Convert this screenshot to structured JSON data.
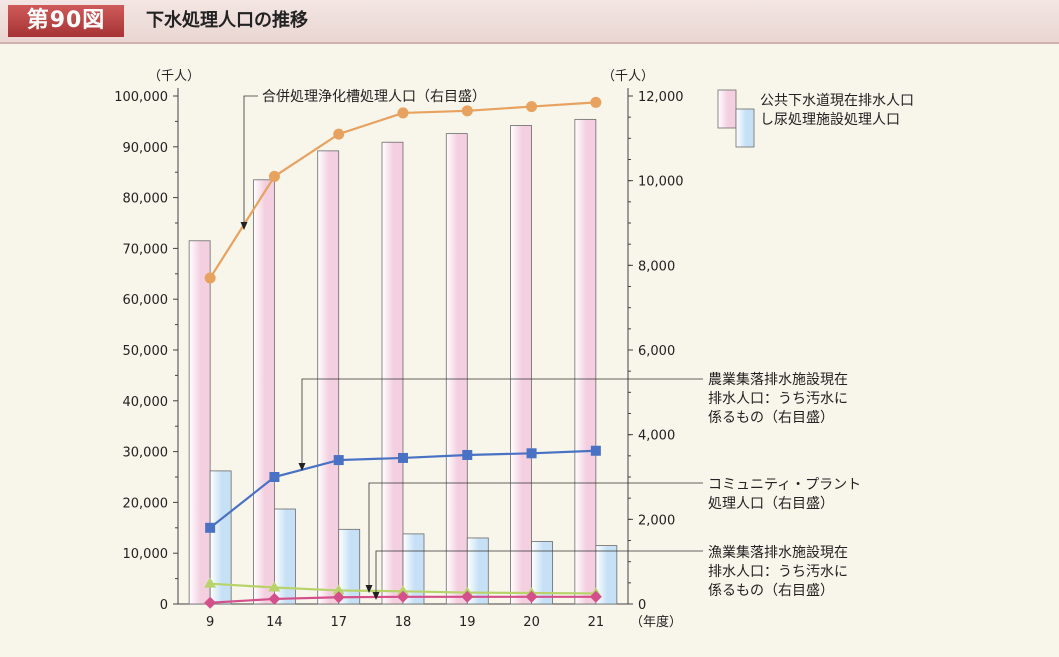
{
  "header": {
    "figure_number": "第90図",
    "title": "下水処理人口の推移"
  },
  "chart_data": {
    "type": "bar",
    "categories": [
      "9",
      "14",
      "17",
      "18",
      "19",
      "20",
      "21"
    ],
    "xlabel": "（年度）",
    "ylabel_left": "（千人）",
    "ylabel_right": "（千人）",
    "ylim_left": [
      0,
      100000
    ],
    "ylim_right": [
      0,
      12000
    ],
    "left_ticks": [
      "0",
      "10,000",
      "20,000",
      "30,000",
      "40,000",
      "50,000",
      "60,000",
      "70,000",
      "80,000",
      "90,000",
      "100,000"
    ],
    "right_ticks": [
      "0",
      "2,000",
      "4,000",
      "6,000",
      "8,000",
      "10,000",
      "12,000"
    ],
    "legend_position": "top-right",
    "bar_series": [
      {
        "name": "公共下水道現在排水人口",
        "axis": "left",
        "color": "#f3cfe0",
        "values": [
          71500,
          83500,
          89200,
          90900,
          92600,
          94200,
          95400
        ]
      },
      {
        "name": "し尿処理施設処理人口",
        "axis": "left",
        "color": "#c6e1f6",
        "values": [
          26200,
          18700,
          14700,
          13800,
          13000,
          12300,
          11500
        ]
      }
    ],
    "line_series": [
      {
        "name": "合併処理浄化槽処理人口（右目盛）",
        "axis": "right",
        "color": "#e8a25f",
        "marker": "circle",
        "values": [
          7700,
          10100,
          11100,
          11600,
          11650,
          11750,
          11850
        ]
      },
      {
        "name": "農業集落排水施設現在排水人口：うち汚水に係るもの（右目盛）",
        "axis": "right",
        "color": "#4a72c4",
        "marker": "square",
        "values": [
          1800,
          3000,
          3400,
          3450,
          3520,
          3560,
          3620
        ]
      },
      {
        "name": "コミュニティ・プラント処理人口（右目盛）",
        "axis": "right",
        "color": "#b7d36a",
        "marker": "triangle",
        "values": [
          480,
          390,
          320,
          300,
          270,
          260,
          250
        ]
      },
      {
        "name": "漁業集落排水施設現在排水人口：うち汚水に係るもの（右目盛）",
        "axis": "right",
        "color": "#d4508a",
        "marker": "diamond",
        "values": [
          30,
          120,
          160,
          170,
          170,
          170,
          170
        ]
      }
    ],
    "annotations": [
      {
        "id": "ann-gappei",
        "lines": [
          "合併処理浄化槽処理人口（右目盛）"
        ]
      },
      {
        "id": "ann-nogyo",
        "lines": [
          "農業集落排水施設現在",
          "排水人口：うち汚水に",
          "係るもの（右目盛）"
        ]
      },
      {
        "id": "ann-community",
        "lines": [
          "コミュニティ・プラント",
          "処理人口（右目盛）"
        ]
      },
      {
        "id": "ann-gyogyo",
        "lines": [
          "漁業集落排水施設現在",
          "排水人口：うち汚水に",
          "係るもの（右目盛）"
        ]
      }
    ]
  }
}
